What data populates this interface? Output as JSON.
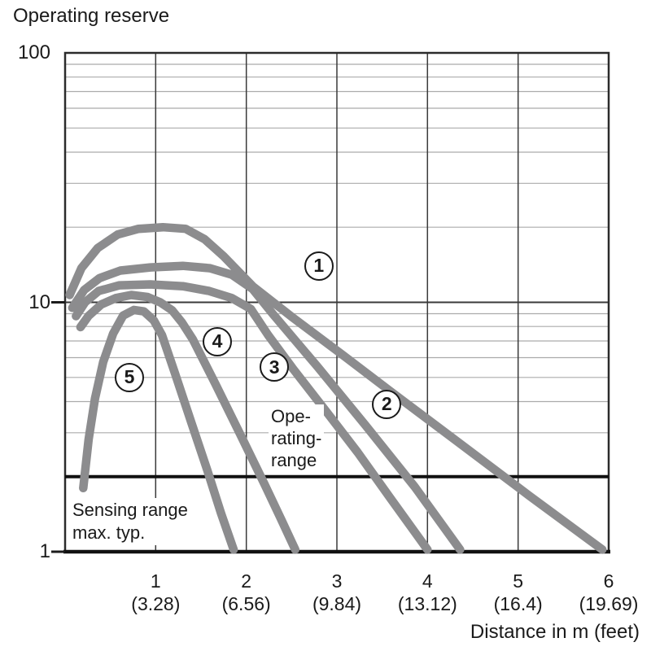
{
  "title": "Operating reserve",
  "colors": {
    "curve": "#8c8c8e",
    "grid_minor": "#ababab",
    "grid_major": "#3a3a3a",
    "axis": "#1c1c1c",
    "threshold": "#111111"
  },
  "annotations": {
    "operating_range_lines": [
      "Ope-",
      "rating-",
      "range"
    ],
    "sensing_range_lines": [
      "Sensing range",
      "max. typ."
    ]
  },
  "chart_data": {
    "type": "line",
    "title": "Operating reserve",
    "xlabel": "Distance in m (feet)",
    "ylabel": "Operating reserve",
    "yscale": "log",
    "xlim": [
      0,
      6
    ],
    "ylim": [
      1,
      100
    ],
    "grid": {
      "minor_y": [
        3,
        4,
        5,
        6,
        7,
        8,
        9,
        20,
        30,
        40,
        50,
        60,
        70,
        80,
        90
      ],
      "major_y": [
        10
      ],
      "vertical_x": [
        1,
        2,
        3,
        4,
        5
      ]
    },
    "y_ticks": [
      {
        "label": "100",
        "v": 100
      },
      {
        "label": "10",
        "v": 10
      },
      {
        "label": "1",
        "v": 1
      }
    ],
    "x_ticks": [
      {
        "x": 1,
        "m": "1",
        "feet": "(3.28)"
      },
      {
        "x": 2,
        "m": "2",
        "feet": "(6.56)"
      },
      {
        "x": 3,
        "m": "3",
        "feet": "(9.84)"
      },
      {
        "x": 4,
        "m": "4",
        "feet": "(13.12)"
      },
      {
        "x": 5,
        "m": "5",
        "feet": "(16.4)"
      },
      {
        "x": 6,
        "m": "6",
        "feet": "(19.69)"
      }
    ],
    "threshold": {
      "value": 2,
      "label": "Sensing range max. typ."
    },
    "operating_range_note": "Ope-rating-range",
    "series": [
      {
        "name": "1",
        "label_pos": {
          "x": 2.8,
          "v": 14.0
        },
        "points": [
          [
            0.05,
            10.7
          ],
          [
            0.18,
            13.7
          ],
          [
            0.36,
            16.5
          ],
          [
            0.58,
            18.7
          ],
          [
            0.81,
            19.7
          ],
          [
            1.08,
            20.0
          ],
          [
            1.33,
            19.7
          ],
          [
            1.54,
            17.9
          ],
          [
            1.75,
            15.3
          ],
          [
            2.07,
            11.6
          ],
          [
            2.51,
            8.7
          ],
          [
            3.05,
            6.2
          ],
          [
            3.59,
            4.4
          ],
          [
            4.31,
            2.8
          ],
          [
            5.12,
            1.68
          ],
          [
            5.93,
            1.02
          ]
        ]
      },
      {
        "name": "2",
        "label_pos": {
          "x": 3.55,
          "v": 3.9
        },
        "points": [
          [
            0.08,
            9.5
          ],
          [
            0.21,
            11.2
          ],
          [
            0.38,
            12.5
          ],
          [
            0.61,
            13.4
          ],
          [
            0.94,
            13.8
          ],
          [
            1.3,
            14.0
          ],
          [
            1.6,
            13.7
          ],
          [
            1.84,
            12.9
          ],
          [
            2.07,
            11.3
          ],
          [
            2.29,
            9.0
          ],
          [
            2.79,
            5.5
          ],
          [
            3.32,
            3.2
          ],
          [
            3.86,
            1.82
          ],
          [
            4.36,
            1.02
          ]
        ]
      },
      {
        "name": "3",
        "label_pos": {
          "x": 2.31,
          "v": 5.5
        },
        "points": [
          [
            0.12,
            8.8
          ],
          [
            0.22,
            10.0
          ],
          [
            0.37,
            11.1
          ],
          [
            0.6,
            11.7
          ],
          [
            0.94,
            11.8
          ],
          [
            1.3,
            11.6
          ],
          [
            1.59,
            11.1
          ],
          [
            1.84,
            10.4
          ],
          [
            2.05,
            9.4
          ],
          [
            2.24,
            7.4
          ],
          [
            2.51,
            5.45
          ],
          [
            2.87,
            3.7
          ],
          [
            3.23,
            2.5
          ],
          [
            3.59,
            1.64
          ],
          [
            4.0,
            1.02
          ]
        ]
      },
      {
        "name": "4",
        "label_pos": {
          "x": 1.68,
          "v": 6.95
        },
        "points": [
          [
            0.17,
            7.95
          ],
          [
            0.26,
            8.83
          ],
          [
            0.4,
            9.81
          ],
          [
            0.56,
            10.4
          ],
          [
            0.73,
            10.7
          ],
          [
            0.91,
            10.5
          ],
          [
            1.05,
            10.0
          ],
          [
            1.18,
            9.3
          ],
          [
            1.29,
            8.3
          ],
          [
            1.41,
            7.1
          ],
          [
            1.66,
            4.7
          ],
          [
            1.93,
            2.97
          ],
          [
            2.2,
            1.87
          ],
          [
            2.38,
            1.36
          ],
          [
            2.54,
            1.02
          ]
        ]
      },
      {
        "name": "5",
        "label_pos": {
          "x": 0.71,
          "v": 5.0
        },
        "points": [
          [
            0.2,
            1.8
          ],
          [
            0.26,
            2.82
          ],
          [
            0.33,
            4.11
          ],
          [
            0.42,
            5.76
          ],
          [
            0.53,
            7.49
          ],
          [
            0.64,
            8.85
          ],
          [
            0.76,
            9.32
          ],
          [
            0.87,
            9.19
          ],
          [
            0.98,
            8.45
          ],
          [
            1.07,
            7.38
          ],
          [
            1.21,
            5.23
          ],
          [
            1.39,
            3.32
          ],
          [
            1.57,
            2.12
          ],
          [
            1.72,
            1.43
          ],
          [
            1.86,
            1.02
          ]
        ]
      }
    ]
  }
}
